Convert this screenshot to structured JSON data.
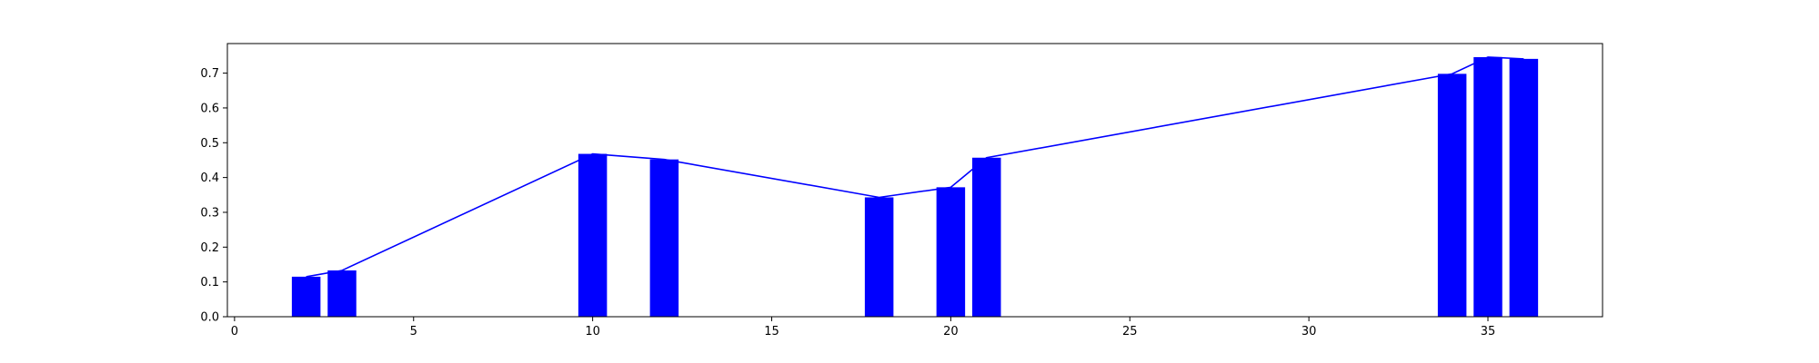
{
  "chart_data": {
    "type": "bar",
    "x": [
      2,
      3,
      10,
      12,
      18,
      20,
      21,
      34,
      35,
      36
    ],
    "values": [
      0.115,
      0.133,
      0.468,
      0.452,
      0.343,
      0.372,
      0.457,
      0.698,
      0.746,
      0.741
    ],
    "line_values": [
      0.115,
      0.133,
      0.468,
      0.452,
      0.343,
      0.372,
      0.457,
      0.698,
      0.746,
      0.741
    ],
    "bar_color": "#0000ff",
    "line_color": "#0000ff",
    "title": "",
    "xlabel": "",
    "ylabel": "",
    "xlim": [
      -0.2,
      38.2
    ],
    "ylim": [
      0,
      0.785
    ],
    "xticks": [
      0,
      5,
      10,
      15,
      20,
      25,
      30,
      35
    ],
    "yticks": [
      0.0,
      0.1,
      0.2,
      0.3,
      0.4,
      0.5,
      0.6,
      0.7
    ],
    "ytick_labels": [
      "0.0",
      "0.1",
      "0.2",
      "0.3",
      "0.4",
      "0.5",
      "0.6",
      "0.7"
    ],
    "grid": false,
    "legend": "none"
  }
}
